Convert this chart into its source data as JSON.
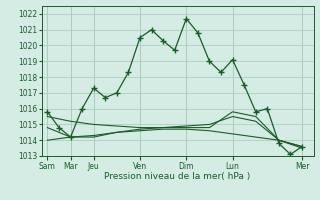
{
  "title": "",
  "xlabel": "Pression niveau de la mer( hPa )",
  "background_color": "#d4ece4",
  "grid_color": "#aac8bc",
  "line_color": "#1a5c28",
  "ylim": [
    1013,
    1022.5
  ],
  "yticks": [
    1013,
    1014,
    1015,
    1016,
    1017,
    1018,
    1019,
    1020,
    1021,
    1022
  ],
  "xtick_major_labels": [
    "Sam",
    "Mar",
    "Jeu",
    "Ven",
    "Dim",
    "Lun",
    "Mer"
  ],
  "xtick_major_positions": [
    0,
    2,
    4,
    8,
    12,
    16,
    22
  ],
  "xlim": [
    -0.5,
    23
  ],
  "series1_x": [
    0,
    1,
    2,
    3,
    4,
    5,
    6,
    7,
    8,
    9,
    10,
    11,
    12,
    13,
    14,
    15,
    16,
    17,
    18,
    19,
    20,
    21,
    22
  ],
  "series1_y": [
    1015.8,
    1014.8,
    1014.2,
    1016.0,
    1017.3,
    1016.7,
    1017.0,
    1018.3,
    1020.5,
    1021.0,
    1020.3,
    1019.7,
    1021.7,
    1020.8,
    1019.0,
    1018.3,
    1019.1,
    1017.5,
    1015.8,
    1016.0,
    1013.8,
    1013.1,
    1013.6
  ],
  "series2_x": [
    0,
    2,
    4,
    6,
    8,
    10,
    12,
    14,
    16,
    18,
    20,
    22
  ],
  "series2_y": [
    1015.5,
    1015.2,
    1015.0,
    1014.9,
    1014.8,
    1014.8,
    1014.8,
    1014.8,
    1015.8,
    1015.5,
    1014.0,
    1013.6
  ],
  "series3_x": [
    0,
    2,
    4,
    6,
    8,
    10,
    12,
    14,
    16,
    18,
    20,
    22
  ],
  "series3_y": [
    1014.8,
    1014.2,
    1014.2,
    1014.5,
    1014.7,
    1014.8,
    1014.9,
    1015.0,
    1015.5,
    1015.2,
    1014.0,
    1013.5
  ],
  "series4_x": [
    0,
    2,
    4,
    6,
    8,
    10,
    12,
    14,
    16,
    18,
    20,
    22
  ],
  "series4_y": [
    1014.0,
    1014.2,
    1014.3,
    1014.5,
    1014.6,
    1014.7,
    1014.7,
    1014.6,
    1014.4,
    1014.2,
    1014.0,
    1013.6
  ]
}
